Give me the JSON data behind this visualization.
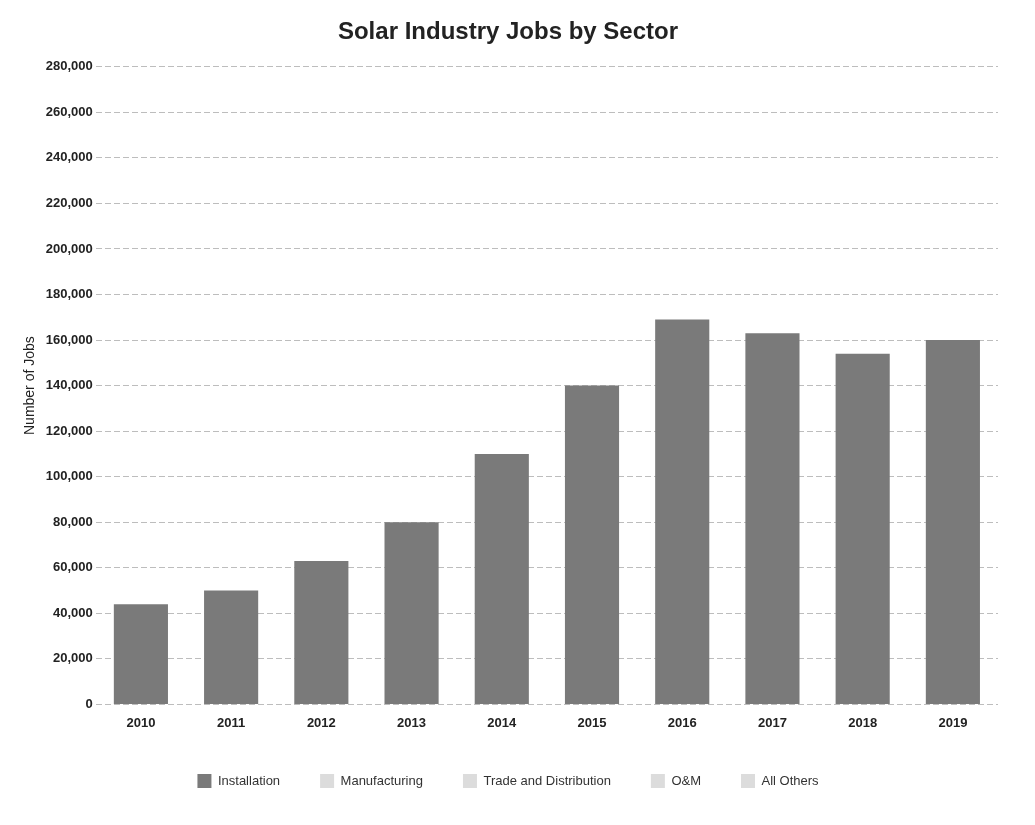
{
  "chart_data": {
    "type": "bar",
    "title": "Solar Industry Jobs by Sector",
    "ylabel": "Number of Jobs",
    "categories": [
      "2010",
      "2011",
      "2012",
      "2013",
      "2014",
      "2015",
      "2016",
      "2017",
      "2018",
      "2019"
    ],
    "series": [
      {
        "name": "Installation",
        "color": "#7a7a7a",
        "values": [
          44000,
          50000,
          63000,
          80000,
          110000,
          140000,
          169000,
          163000,
          154000,
          160000
        ]
      },
      {
        "name": "Manufacturing",
        "color": "#dcdcdc",
        "values": [
          null,
          null,
          null,
          null,
          null,
          null,
          null,
          null,
          null,
          null
        ]
      },
      {
        "name": "Trade and Distribution",
        "color": "#dcdcdc",
        "values": [
          null,
          null,
          null,
          null,
          null,
          null,
          null,
          null,
          null,
          null
        ]
      },
      {
        "name": "O&M",
        "color": "#dcdcdc",
        "values": [
          null,
          null,
          null,
          null,
          null,
          null,
          null,
          null,
          null,
          null
        ]
      },
      {
        "name": "All Others",
        "color": "#dcdcdc",
        "values": [
          null,
          null,
          null,
          null,
          null,
          null,
          null,
          null,
          null,
          null
        ]
      }
    ],
    "stacked": true,
    "ylim": [
      0,
      280000
    ],
    "yticks": [
      0,
      {
        "value": 20000,
        "label": "20,000"
      },
      {
        "value": 40000,
        "label": "40,000"
      },
      {
        "value": 60000,
        "label": "60,000"
      },
      {
        "value": 80000,
        "label": "80,000"
      },
      {
        "value": 100000,
        "label": "100,000"
      },
      {
        "value": 120000,
        "label": "120,000"
      },
      {
        "value": 140000,
        "label": "140,000"
      },
      {
        "value": 160000,
        "label": "160,000"
      },
      {
        "value": 180000,
        "label": "180,000"
      },
      {
        "value": 200000,
        "label": "200,000"
      },
      {
        "value": 220000,
        "label": "220,000"
      },
      {
        "value": 240000,
        "label": "240,000"
      },
      {
        "value": 260000,
        "label": "260,000"
      },
      {
        "value": 280000,
        "label": "280,000"
      }
    ],
    "grid": "y",
    "legend": "bottom"
  }
}
